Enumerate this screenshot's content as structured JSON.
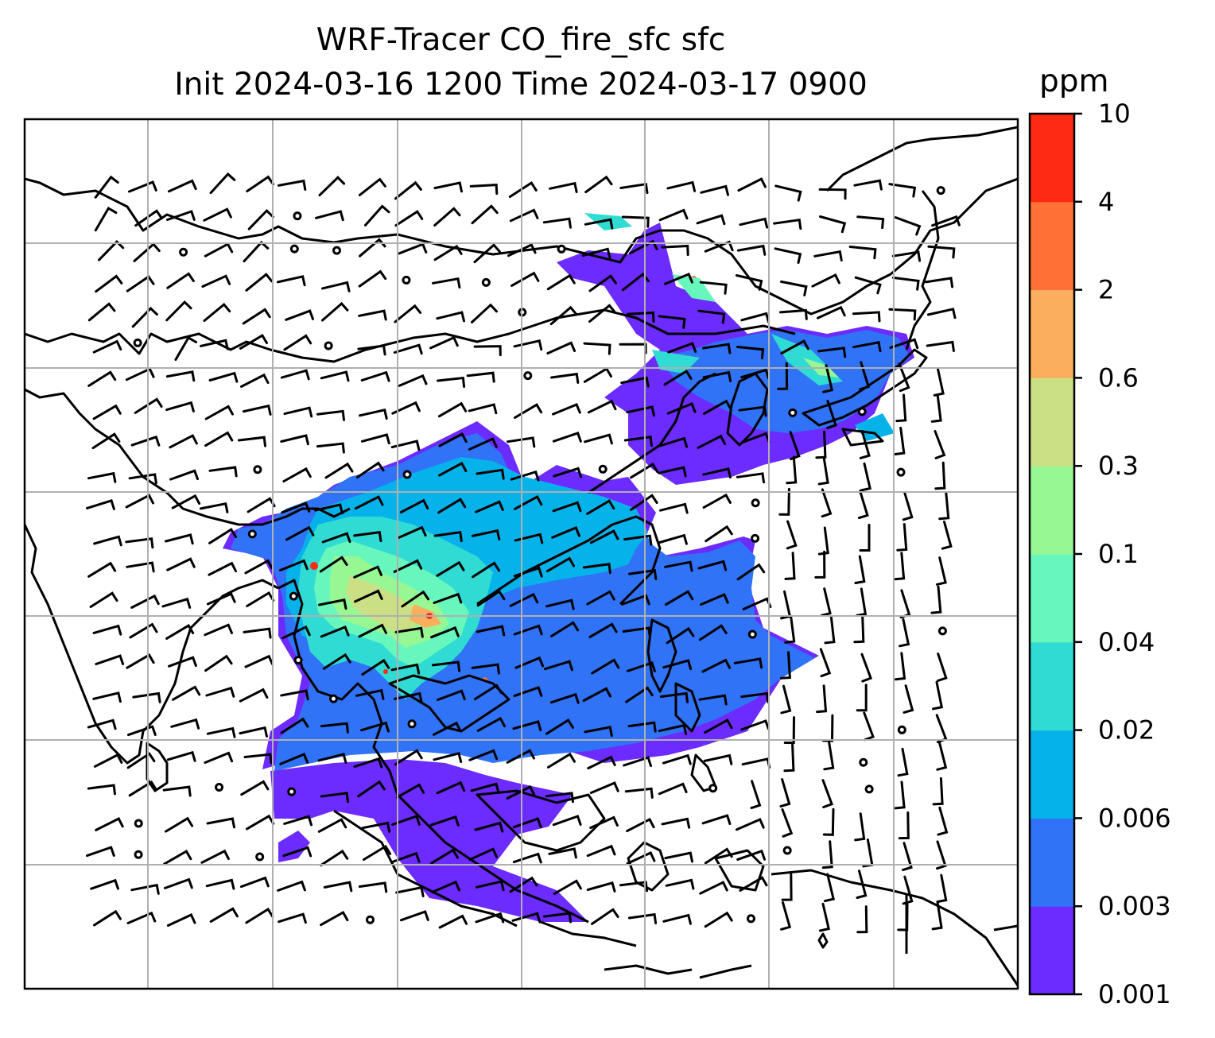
{
  "title_line1": "WRF-Tracer CO_fire_sfc sfc",
  "title_line2": "Init 2024-03-16 1200 Time 2024-03-17 0900",
  "chart_data": {
    "type": "heatmap",
    "title": "WRF-Tracer CO_fire_sfc sfc",
    "subtitle": "Init 2024-03-16 1200 Time 2024-03-17 0900",
    "colorbar": {
      "unit": "ppm",
      "levels": [
        "0.001",
        "0.003",
        "0.006",
        "0.02",
        "0.04",
        "0.1",
        "0.3",
        "0.6",
        "2",
        "4",
        "10"
      ],
      "colors": [
        "#6c2bff",
        "#3073f6",
        "#06b2ea",
        "#2fdbd2",
        "#67f7bd",
        "#97f893",
        "#cbe084",
        "#fcae5f",
        "#ff7136",
        "#ff2a14"
      ]
    },
    "grid": true,
    "overlays": [
      "coastlines",
      "country borders",
      "wind barbs"
    ]
  }
}
